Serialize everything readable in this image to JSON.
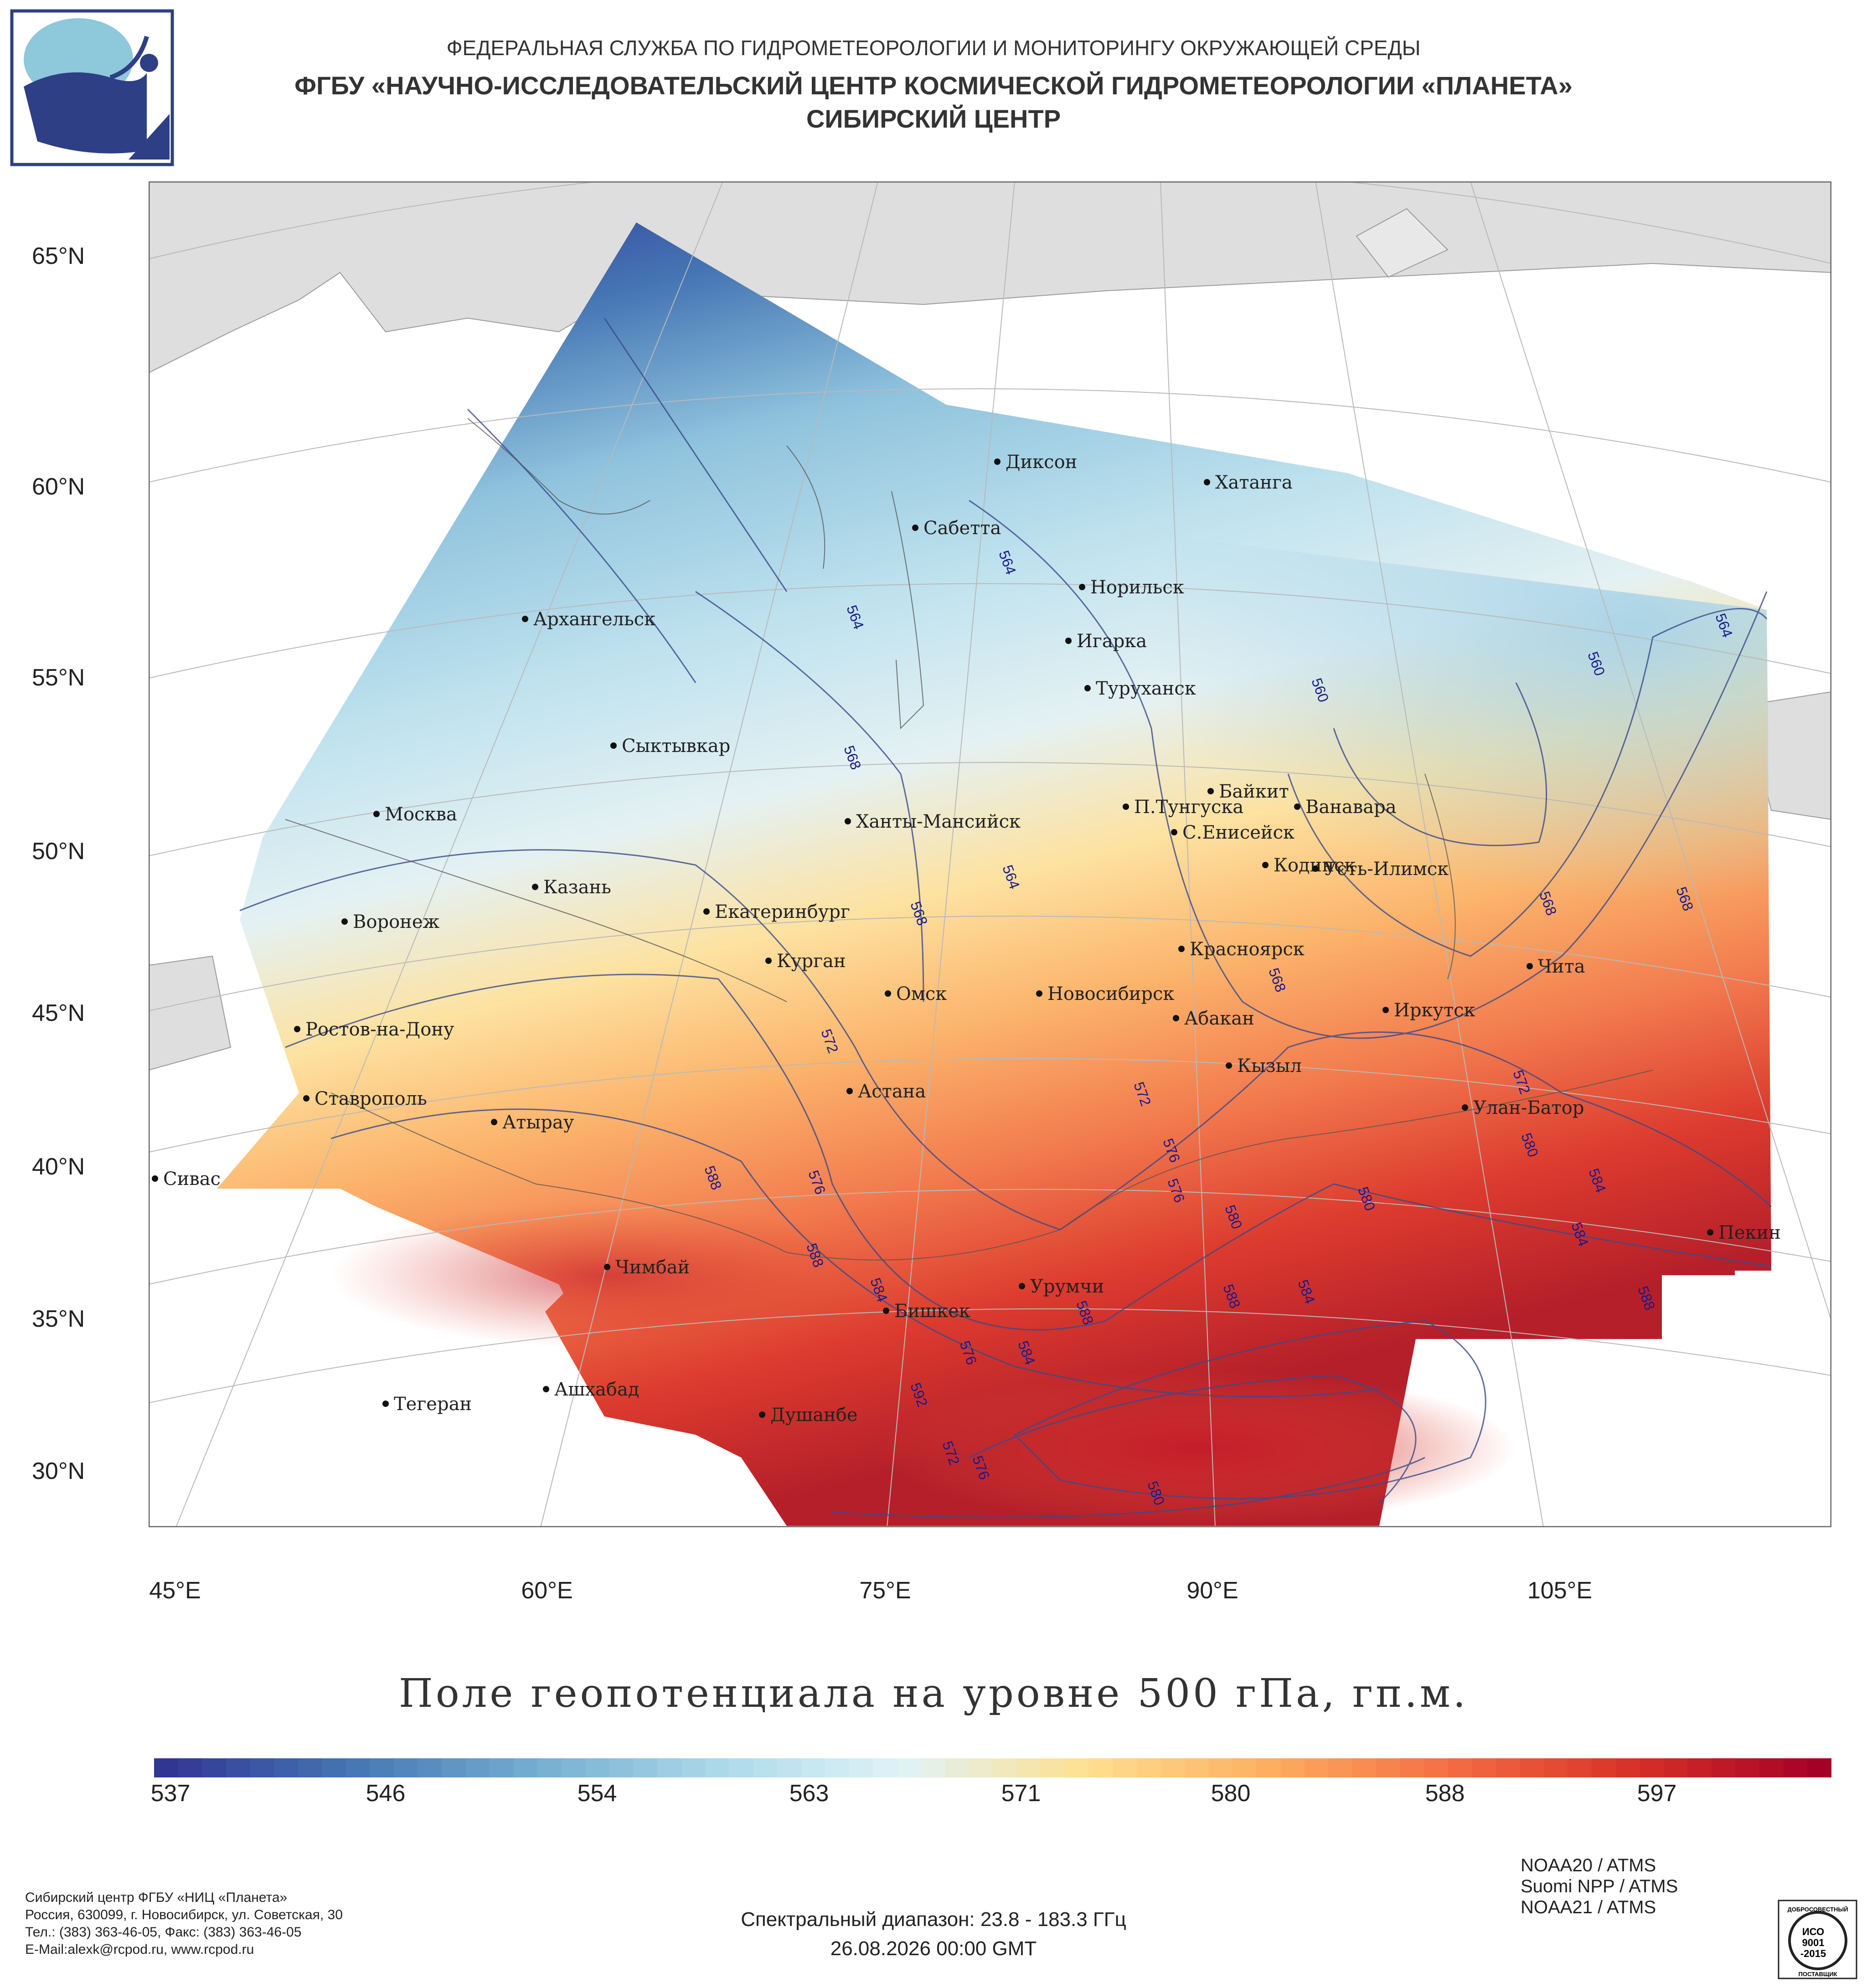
{
  "header": {
    "agency": "ФЕДЕРАЛЬНАЯ СЛУЖБА ПО ГИДРОМЕТЕОРОЛОГИИ И МОНИТОРИНГУ ОКРУЖАЮЩЕЙ СРЕДЫ",
    "institute": "ФГБУ «НАУЧНО-ИССЛЕДОВАТЕЛЬСКИЙ ЦЕНТР КОСМИЧЕСКОЙ ГИДРОМЕТЕОРОЛОГИИ «ПЛАНЕТА»",
    "center": "СИБИРСКИЙ ЦЕНТР"
  },
  "map": {
    "title": "Поле геопотенциала на уровне 500 гПа, гп.м.",
    "lat_labels": [
      "65°N",
      "60°N",
      "55°N",
      "50°N",
      "45°N",
      "40°N",
      "35°N",
      "30°N"
    ],
    "lon_labels": [
      "45°E",
      "60°E",
      "75°E",
      "90°E",
      "105°E"
    ],
    "cities": [
      {
        "name": "Диксон"
      },
      {
        "name": "Хатанга"
      },
      {
        "name": "Сабетта"
      },
      {
        "name": "Норильск"
      },
      {
        "name": "Архангельск"
      },
      {
        "name": "Игарка"
      },
      {
        "name": "Туруханск"
      },
      {
        "name": "Сыктывкар"
      },
      {
        "name": "Байкит"
      },
      {
        "name": "П.Тунгуска"
      },
      {
        "name": "Ванавара"
      },
      {
        "name": "Москва"
      },
      {
        "name": "Ханты-Мансийск"
      },
      {
        "name": "С.Енисейск"
      },
      {
        "name": "Казань"
      },
      {
        "name": "Кодинск"
      },
      {
        "name": "Усть-Илимск"
      },
      {
        "name": "Воронеж"
      },
      {
        "name": "Екатеринбург"
      },
      {
        "name": "Красноярск"
      },
      {
        "name": "Курган"
      },
      {
        "name": "Чита"
      },
      {
        "name": "Омск"
      },
      {
        "name": "Новосибирск"
      },
      {
        "name": "Ростов-на-Дону"
      },
      {
        "name": "Абакан"
      },
      {
        "name": "Иркутск"
      },
      {
        "name": "Кызыл"
      },
      {
        "name": "Ставрополь"
      },
      {
        "name": "Астана"
      },
      {
        "name": "Улан-Батор"
      },
      {
        "name": "Атырау"
      },
      {
        "name": "Сивас"
      },
      {
        "name": "Пекин"
      },
      {
        "name": "Чимбай"
      },
      {
        "name": "Урумчи"
      },
      {
        "name": "Бишкек"
      },
      {
        "name": "Ашхабад"
      },
      {
        "name": "Душанбе"
      },
      {
        "name": "Тегеран"
      }
    ],
    "contour_labels": [
      "564",
      "564",
      "560",
      "560",
      "564",
      "568",
      "564",
      "568",
      "568",
      "568",
      "572",
      "568",
      "572",
      "572",
      "576",
      "580",
      "576",
      "584",
      "576",
      "580",
      "580",
      "584",
      "588",
      "588",
      "588",
      "584",
      "576",
      "584",
      "588",
      "592",
      "572",
      "576",
      "580",
      "584",
      "588"
    ]
  },
  "colorbar": {
    "tick_labels": [
      "537",
      "546",
      "554",
      "563",
      "571",
      "580",
      "588",
      "597"
    ],
    "min": 533,
    "max": 603,
    "colors": [
      "#313695",
      "#4575b4",
      "#74add1",
      "#abd9e9",
      "#e0f3f8",
      "#fee090",
      "#fdae61",
      "#f46d43",
      "#d73027",
      "#a50026"
    ]
  },
  "footer": {
    "org_lines": [
      "Сибирский центр ФГБУ «НИЦ «Планета»",
      "Россия, 630099, г. Новосибирск, ул. Советская, 30",
      "Тел.: (383) 363-46-05, Факс: (383) 363-46-05",
      "E-Mail:alexk@rcpod.ru, www.rcpod.ru"
    ],
    "spectral": "Спектральный диапазон: 23.8 - 183.3 ГГц",
    "datetime": "26.08.2026 00:00 GMT",
    "satellites": [
      "NOAA20 / ATMS",
      "Suomi NPP / ATMS",
      "NOAA21 / ATMS"
    ],
    "iso": {
      "top": "ДОБРОСОВЕСТНЫЙ",
      "line1": "ИСО",
      "line2": "9001",
      "line3": "-2015",
      "bottom": "ПОСТАВЩИК"
    }
  }
}
